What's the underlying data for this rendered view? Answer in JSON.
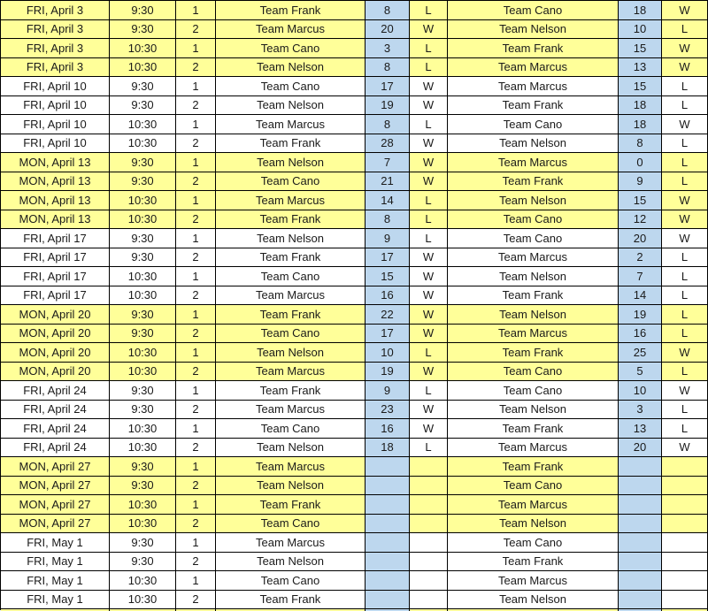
{
  "colors": {
    "row_highlight": "#FFFF99",
    "score_column": "#BDD7EE",
    "row_default": "#FFFFFF",
    "grid_border": "#000000"
  },
  "table": {
    "columns": [
      "date",
      "time",
      "game",
      "team1",
      "score1",
      "result1",
      "team2",
      "score2",
      "result2"
    ],
    "rows": [
      {
        "date": "FRI, April 3",
        "time": "9:30",
        "game": "1",
        "team1": "Team Frank",
        "score1": "8",
        "result1": "L",
        "team2": "Team Cano",
        "score2": "18",
        "result2": "W",
        "highlight": true
      },
      {
        "date": "FRI, April 3",
        "time": "9:30",
        "game": "2",
        "team1": "Team Marcus",
        "score1": "20",
        "result1": "W",
        "team2": "Team Nelson",
        "score2": "10",
        "result2": "L",
        "highlight": true
      },
      {
        "date": "FRI, April 3",
        "time": "10:30",
        "game": "1",
        "team1": "Team Cano",
        "score1": "3",
        "result1": "L",
        "team2": "Team Frank",
        "score2": "15",
        "result2": "W",
        "highlight": true
      },
      {
        "date": "FRI, April 3",
        "time": "10:30",
        "game": "2",
        "team1": "Team Nelson",
        "score1": "8",
        "result1": "L",
        "team2": "Team Marcus",
        "score2": "13",
        "result2": "W",
        "highlight": true
      },
      {
        "date": "FRI, April 10",
        "time": "9:30",
        "game": "1",
        "team1": "Team Cano",
        "score1": "17",
        "result1": "W",
        "team2": "Team Marcus",
        "score2": "15",
        "result2": "L",
        "highlight": false
      },
      {
        "date": "FRI, April 10",
        "time": "9:30",
        "game": "2",
        "team1": "Team Nelson",
        "score1": "19",
        "result1": "W",
        "team2": "Team Frank",
        "score2": "18",
        "result2": "L",
        "highlight": false
      },
      {
        "date": "FRI, April 10",
        "time": "10:30",
        "game": "1",
        "team1": "Team Marcus",
        "score1": "8",
        "result1": "L",
        "team2": "Team Cano",
        "score2": "18",
        "result2": "W",
        "highlight": false
      },
      {
        "date": "FRI, April 10",
        "time": "10:30",
        "game": "2",
        "team1": "Team Frank",
        "score1": "28",
        "result1": "W",
        "team2": "Team Nelson",
        "score2": "8",
        "result2": "L",
        "highlight": false
      },
      {
        "date": "MON, April 13",
        "time": "9:30",
        "game": "1",
        "team1": "Team Nelson",
        "score1": "7",
        "result1": "W",
        "team2": "Team Marcus",
        "score2": "0",
        "result2": "L",
        "highlight": true
      },
      {
        "date": "MON, April 13",
        "time": "9:30",
        "game": "2",
        "team1": "Team Cano",
        "score1": "21",
        "result1": "W",
        "team2": "Team Frank",
        "score2": "9",
        "result2": "L",
        "highlight": true
      },
      {
        "date": "MON, April 13",
        "time": "10:30",
        "game": "1",
        "team1": "Team Marcus",
        "score1": "14",
        "result1": "L",
        "team2": "Team Nelson",
        "score2": "15",
        "result2": "W",
        "highlight": true
      },
      {
        "date": "MON, April 13",
        "time": "10:30",
        "game": "2",
        "team1": "Team Frank",
        "score1": "8",
        "result1": "L",
        "team2": "Team Cano",
        "score2": "12",
        "result2": "W",
        "highlight": true
      },
      {
        "date": "FRI, April 17",
        "time": "9:30",
        "game": "1",
        "team1": "Team Nelson",
        "score1": "9",
        "result1": "L",
        "team2": "Team Cano",
        "score2": "20",
        "result2": "W",
        "highlight": false
      },
      {
        "date": "FRI, April 17",
        "time": "9:30",
        "game": "2",
        "team1": "Team Frank",
        "score1": "17",
        "result1": "W",
        "team2": "Team Marcus",
        "score2": "2",
        "result2": "L",
        "highlight": false
      },
      {
        "date": "FRI, April 17",
        "time": "10:30",
        "game": "1",
        "team1": "Team Cano",
        "score1": "15",
        "result1": "W",
        "team2": "Team Nelson",
        "score2": "7",
        "result2": "L",
        "highlight": false
      },
      {
        "date": "FRI, April 17",
        "time": "10:30",
        "game": "2",
        "team1": "Team Marcus",
        "score1": "16",
        "result1": "W",
        "team2": "Team Frank",
        "score2": "14",
        "result2": "L",
        "highlight": false
      },
      {
        "date": "MON, April 20",
        "time": "9:30",
        "game": "1",
        "team1": "Team Frank",
        "score1": "22",
        "result1": "W",
        "team2": "Team Nelson",
        "score2": "19",
        "result2": "L",
        "highlight": true
      },
      {
        "date": "MON, April 20",
        "time": "9:30",
        "game": "2",
        "team1": "Team Cano",
        "score1": "17",
        "result1": "W",
        "team2": "Team Marcus",
        "score2": "16",
        "result2": "L",
        "highlight": true
      },
      {
        "date": "MON, April 20",
        "time": "10:30",
        "game": "1",
        "team1": "Team Nelson",
        "score1": "10",
        "result1": "L",
        "team2": "Team Frank",
        "score2": "25",
        "result2": "W",
        "highlight": true
      },
      {
        "date": "MON, April 20",
        "time": "10:30",
        "game": "2",
        "team1": "Team Marcus",
        "score1": "19",
        "result1": "W",
        "team2": "Team Cano",
        "score2": "5",
        "result2": "L",
        "highlight": true
      },
      {
        "date": "FRI, April 24",
        "time": "9:30",
        "game": "1",
        "team1": "Team Frank",
        "score1": "9",
        "result1": "L",
        "team2": "Team Cano",
        "score2": "10",
        "result2": "W",
        "highlight": false
      },
      {
        "date": "FRI, April 24",
        "time": "9:30",
        "game": "2",
        "team1": "Team Marcus",
        "score1": "23",
        "result1": "W",
        "team2": "Team Nelson",
        "score2": "3",
        "result2": "L",
        "highlight": false
      },
      {
        "date": "FRI, April 24",
        "time": "10:30",
        "game": "1",
        "team1": "Team Cano",
        "score1": "16",
        "result1": "W",
        "team2": "Team Frank",
        "score2": "13",
        "result2": "L",
        "highlight": false
      },
      {
        "date": "FRI, April 24",
        "time": "10:30",
        "game": "2",
        "team1": "Team Nelson",
        "score1": "18",
        "result1": "L",
        "team2": "Team Marcus",
        "score2": "20",
        "result2": "W",
        "highlight": false
      },
      {
        "date": "MON, April 27",
        "time": "9:30",
        "game": "1",
        "team1": "Team Marcus",
        "score1": "",
        "result1": "",
        "team2": "Team Frank",
        "score2": "",
        "result2": "",
        "highlight": true
      },
      {
        "date": "MON, April 27",
        "time": "9:30",
        "game": "2",
        "team1": "Team Nelson",
        "score1": "",
        "result1": "",
        "team2": "Team Cano",
        "score2": "",
        "result2": "",
        "highlight": true
      },
      {
        "date": "MON, April 27",
        "time": "10:30",
        "game": "1",
        "team1": "Team Frank",
        "score1": "",
        "result1": "",
        "team2": "Team Marcus",
        "score2": "",
        "result2": "",
        "highlight": true
      },
      {
        "date": "MON, April 27",
        "time": "10:30",
        "game": "2",
        "team1": "Team Cano",
        "score1": "",
        "result1": "",
        "team2": "Team Nelson",
        "score2": "",
        "result2": "",
        "highlight": true
      },
      {
        "date": "FRI, May 1",
        "time": "9:30",
        "game": "1",
        "team1": "Team Marcus",
        "score1": "",
        "result1": "",
        "team2": "Team Cano",
        "score2": "",
        "result2": "",
        "highlight": false
      },
      {
        "date": "FRI, May 1",
        "time": "9:30",
        "game": "2",
        "team1": "Team Nelson",
        "score1": "",
        "result1": "",
        "team2": "Team Frank",
        "score2": "",
        "result2": "",
        "highlight": false
      },
      {
        "date": "FRI, May 1",
        "time": "10:30",
        "game": "1",
        "team1": "Team Cano",
        "score1": "",
        "result1": "",
        "team2": "Team Marcus",
        "score2": "",
        "result2": "",
        "highlight": false
      },
      {
        "date": "FRI, May 1",
        "time": "10:30",
        "game": "2",
        "team1": "Team Frank",
        "score1": "",
        "result1": "",
        "team2": "Team Nelson",
        "score2": "",
        "result2": "",
        "highlight": false
      }
    ],
    "next_row_partial_highlight": true
  }
}
